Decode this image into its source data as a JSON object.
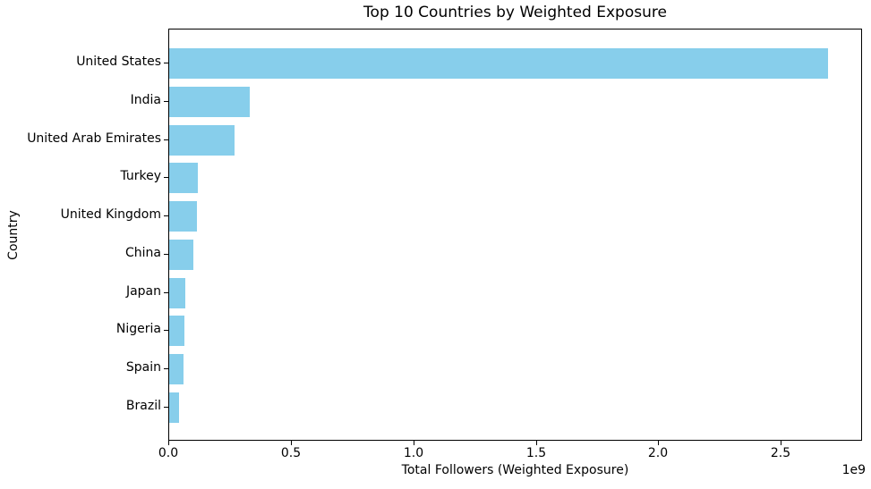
{
  "chart_data": {
    "type": "bar",
    "orientation": "horizontal",
    "title": "Top 10 Countries by Weighted Exposure",
    "xlabel": "Total Followers (Weighted Exposure)",
    "ylabel": "Country",
    "categories": [
      "United States",
      "India",
      "United Arab Emirates",
      "Turkey",
      "United Kingdom",
      "China",
      "Japan",
      "Nigeria",
      "Spain",
      "Brazil"
    ],
    "values": [
      2690000000,
      329000000,
      268000000,
      116000000,
      113000000,
      97000000,
      65000000,
      62000000,
      58000000,
      40000000
    ],
    "xlim": [
      0,
      2824000000
    ],
    "x_ticks": [
      0,
      500000000,
      1000000000,
      1500000000,
      2000000000,
      2500000000
    ],
    "x_tick_labels": [
      "0.0",
      "0.5",
      "1.0",
      "1.5",
      "2.0",
      "2.5"
    ],
    "offset_text": "1e9",
    "bar_color": "#87CEEB",
    "spine_color": "#000000",
    "background_color": "#ffffff",
    "grid": false,
    "legend": null
  }
}
